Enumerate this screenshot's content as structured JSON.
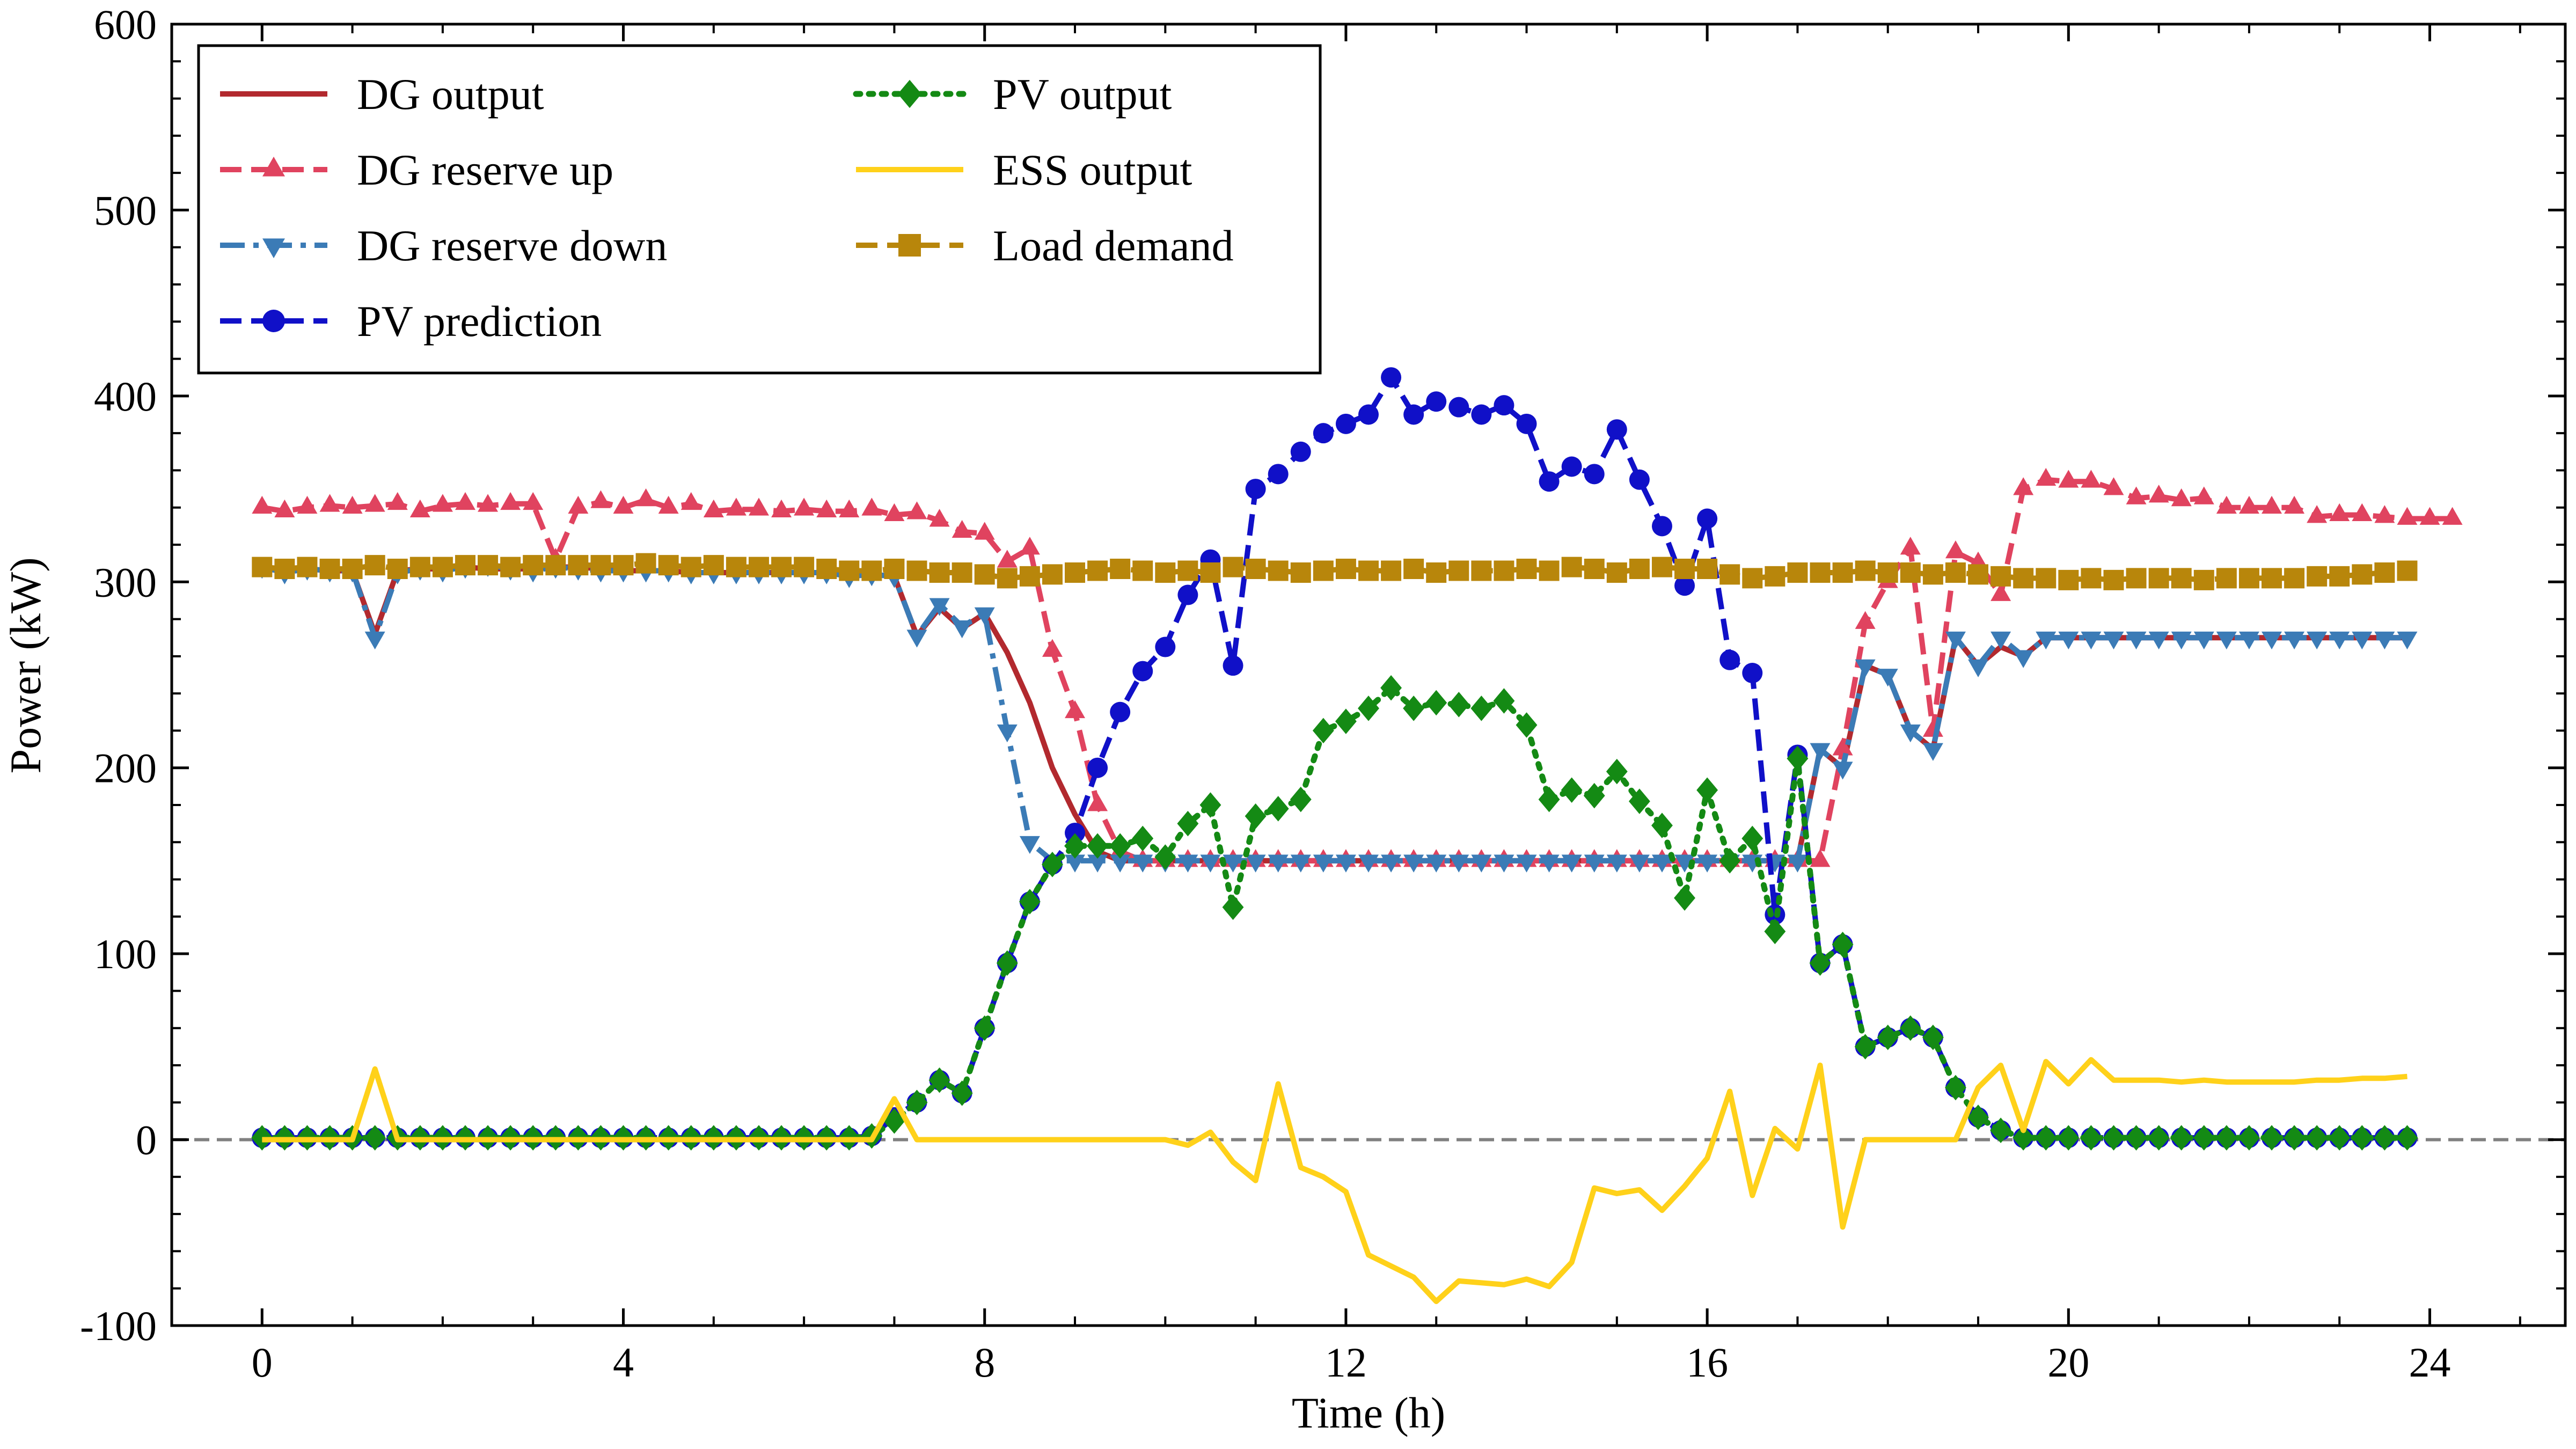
{
  "chart_data": {
    "type": "line",
    "xlabel": "Time (h)",
    "ylabel": "Power (kW)",
    "xlim": [
      -1,
      25.5
    ],
    "ylim": [
      -100,
      600
    ],
    "xticks": [
      0,
      4,
      8,
      12,
      16,
      20,
      24
    ],
    "yticks": [
      -100,
      0,
      100,
      200,
      300,
      400,
      500,
      600
    ],
    "xstep": 0.25,
    "zero_line": true,
    "legend_placement": "top-left",
    "series": [
      {
        "name": "DG output",
        "color": "#b2292e",
        "dash": "solid",
        "marker": "none",
        "values": [
          307,
          306,
          307,
          306,
          306,
          272,
          306,
          307,
          307,
          308,
          307,
          307,
          307,
          308,
          308,
          307,
          306,
          306,
          306,
          305,
          305,
          305,
          305,
          305,
          305,
          305,
          303,
          304,
          303,
          271,
          286,
          275,
          283,
          262,
          235,
          200,
          175,
          155,
          150,
          150,
          150,
          150,
          150,
          150,
          150,
          150,
          150,
          150,
          150,
          150,
          150,
          150,
          150,
          150,
          150,
          150,
          150,
          150,
          150,
          150,
          150,
          150,
          150,
          150,
          150,
          150,
          150,
          150,
          150,
          210,
          200,
          255,
          250,
          220,
          210,
          270,
          255,
          265,
          260,
          270,
          270,
          270,
          270,
          270,
          270,
          270,
          270,
          270,
          270,
          270,
          270,
          270,
          270,
          270,
          270,
          270
        ]
      },
      {
        "name": "DG reserve up",
        "color": "#e0435f",
        "dash": "dashed",
        "marker": "triangle-up",
        "values": [
          340,
          338,
          340,
          341,
          340,
          341,
          342,
          338,
          341,
          342,
          341,
          342,
          342,
          312,
          340,
          343,
          340,
          344,
          340,
          342,
          338,
          339,
          339,
          338,
          339,
          338,
          338,
          339,
          336,
          337,
          333,
          327,
          326,
          311,
          318,
          263,
          230,
          180,
          155,
          150,
          150,
          150,
          150,
          150,
          150,
          150,
          150,
          150,
          150,
          150,
          150,
          150,
          150,
          150,
          150,
          150,
          150,
          150,
          150,
          150,
          150,
          150,
          150,
          150,
          150,
          150,
          150,
          150,
          150,
          150,
          210,
          278,
          300,
          318,
          220,
          316,
          310,
          293,
          350,
          355,
          354,
          354,
          350,
          345,
          346,
          344,
          345,
          340,
          340,
          340,
          340,
          335,
          336,
          336,
          335,
          334,
          334,
          334
        ]
      },
      {
        "name": "DG reserve down",
        "color": "#3b7bb6",
        "dash": "dashdot",
        "marker": "triangle-down",
        "values": [
          308,
          305,
          307,
          306,
          306,
          270,
          305,
          307,
          306,
          308,
          309,
          307,
          306,
          308,
          307,
          306,
          306,
          306,
          306,
          305,
          305,
          305,
          305,
          305,
          305,
          305,
          303,
          304,
          303,
          271,
          288,
          276,
          283,
          220,
          160,
          150,
          150,
          150,
          150,
          150,
          150,
          150,
          150,
          150,
          150,
          150,
          150,
          150,
          150,
          150,
          150,
          150,
          150,
          150,
          150,
          150,
          150,
          150,
          150,
          150,
          150,
          150,
          150,
          150,
          150,
          150,
          150,
          150,
          150,
          210,
          200,
          255,
          250,
          220,
          210,
          270,
          255,
          270,
          260,
          270,
          270,
          270,
          270,
          270,
          270,
          270,
          270,
          270,
          270,
          270,
          270,
          270,
          270,
          270,
          270,
          270
        ]
      },
      {
        "name": "PV prediction",
        "color": "#1010c8",
        "dash": "dashed",
        "marker": "circle",
        "values": [
          1,
          1,
          1,
          1,
          1,
          1,
          1,
          1,
          1,
          1,
          1,
          1,
          1,
          1,
          1,
          1,
          1,
          1,
          1,
          1,
          1,
          1,
          1,
          1,
          1,
          1,
          1,
          2,
          12,
          20,
          32,
          25,
          60,
          95,
          128,
          148,
          165,
          200,
          230,
          252,
          265,
          293,
          312,
          255,
          350,
          358,
          370,
          380,
          385,
          390,
          410,
          390,
          397,
          394,
          390,
          395,
          385,
          354,
          362,
          358,
          382,
          355,
          330,
          298,
          334,
          258,
          251,
          121,
          207,
          95,
          105,
          50,
          55,
          60,
          55,
          28,
          12,
          5,
          1,
          1,
          1,
          1,
          1,
          1,
          1,
          1,
          1,
          1,
          1,
          1,
          1,
          1,
          1,
          1,
          1,
          1
        ]
      },
      {
        "name": "PV output",
        "color": "#148a14",
        "dash": "dotted",
        "marker": "diamond",
        "values": [
          1,
          1,
          1,
          1,
          1,
          1,
          1,
          1,
          1,
          1,
          1,
          1,
          1,
          1,
          1,
          1,
          1,
          1,
          1,
          1,
          1,
          1,
          1,
          1,
          1,
          1,
          1,
          2,
          10,
          20,
          32,
          25,
          60,
          95,
          128,
          148,
          158,
          158,
          158,
          162,
          152,
          170,
          180,
          125,
          174,
          178,
          183,
          220,
          225,
          232,
          243,
          232,
          235,
          234,
          232,
          236,
          223,
          183,
          188,
          185,
          198,
          182,
          169,
          130,
          188,
          150,
          162,
          112,
          205,
          95,
          105,
          50,
          55,
          60,
          55,
          28,
          12,
          5,
          1,
          1,
          1,
          1,
          1,
          1,
          1,
          1,
          1,
          1,
          1,
          1,
          1,
          1,
          1,
          1,
          1,
          1
        ]
      },
      {
        "name": "ESS output",
        "color": "#ffd11a",
        "dash": "solid",
        "marker": "none",
        "values": [
          0,
          0,
          0,
          0,
          0,
          38,
          0,
          0,
          0,
          0,
          0,
          0,
          0,
          0,
          0,
          0,
          0,
          0,
          0,
          0,
          0,
          0,
          0,
          0,
          0,
          0,
          0,
          0,
          22,
          0,
          0,
          0,
          0,
          0,
          0,
          0,
          0,
          0,
          0,
          0,
          0,
          -3,
          4,
          -12,
          -22,
          30,
          -15,
          -20,
          -28,
          -62,
          -68,
          -74,
          -87,
          -76,
          -77,
          -78,
          -75,
          -79,
          -66,
          -26,
          -29,
          -27,
          -38,
          -25,
          -10,
          26,
          -30,
          6,
          -5,
          40,
          -47,
          0,
          0,
          0,
          0,
          0,
          28,
          40,
          5,
          42,
          30,
          43,
          32,
          32,
          32,
          31,
          32,
          31,
          31,
          31,
          31,
          32,
          32,
          33,
          33,
          34
        ]
      },
      {
        "name": "Load demand",
        "color": "#b8860b",
        "dash": "dashed",
        "marker": "square",
        "values": [
          308,
          307,
          308,
          307,
          307,
          309,
          307,
          308,
          308,
          309,
          309,
          308,
          309,
          309,
          309,
          309,
          309,
          310,
          309,
          308,
          309,
          308,
          308,
          308,
          308,
          307,
          306,
          306,
          307,
          306,
          305,
          305,
          304,
          302,
          303,
          304,
          305,
          306,
          307,
          306,
          305,
          306,
          305,
          308,
          307,
          306,
          305,
          306,
          307,
          306,
          306,
          307,
          305,
          306,
          306,
          306,
          307,
          306,
          308,
          307,
          305,
          307,
          308,
          307,
          307,
          304,
          302,
          303,
          305,
          305,
          305,
          306,
          305,
          305,
          304,
          305,
          304,
          303,
          302,
          302,
          301,
          302,
          301,
          302,
          302,
          302,
          301,
          302,
          302,
          302,
          302,
          303,
          303,
          304,
          305,
          306
        ]
      }
    ]
  }
}
